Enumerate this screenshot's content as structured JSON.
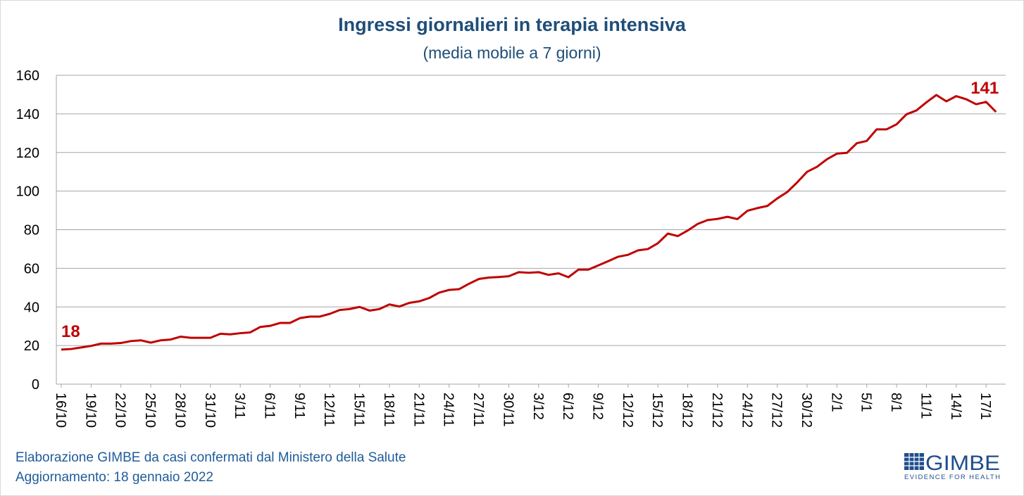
{
  "chart_data": {
    "type": "line",
    "title": "Ingressi giornalieri in terapia intensiva",
    "subtitle": "(media mobile a 7 giorni)",
    "xlabel": "",
    "ylabel": "",
    "ylim": [
      0,
      160
    ],
    "yticks": [
      0,
      20,
      40,
      60,
      80,
      100,
      120,
      140,
      160
    ],
    "grid": true,
    "x_tick_labels": [
      "16/10",
      "19/10",
      "22/10",
      "25/10",
      "28/10",
      "31/10",
      "3/11",
      "6/11",
      "9/11",
      "12/11",
      "15/11",
      "18/11",
      "21/11",
      "24/11",
      "27/11",
      "30/11",
      "3/12",
      "6/12",
      "9/12",
      "12/12",
      "15/12",
      "18/12",
      "21/12",
      "24/12",
      "27/12",
      "30/12",
      "2/1",
      "5/1",
      "8/1",
      "11/1",
      "14/1",
      "17/1"
    ],
    "x_start": "16/10",
    "x_end": "18/1",
    "series": [
      {
        "name": "Ingressi giornalieri in terapia intensiva",
        "color": "#c00000",
        "values": [
          17.9,
          18.2,
          19,
          19.8,
          21,
          21,
          21.3,
          22.3,
          22.7,
          21.5,
          22.7,
          23.1,
          24.6,
          24,
          24,
          24,
          26.1,
          25.8,
          26.4,
          26.8,
          29.6,
          30.2,
          31.7,
          31.7,
          34.2,
          35,
          35,
          36.4,
          38.4,
          38.9,
          40,
          38.1,
          38.9,
          41.3,
          40.2,
          42.1,
          42.9,
          44.6,
          47.4,
          48.8,
          49.2,
          52,
          54.5,
          55.2,
          55.5,
          55.9,
          58,
          57.7,
          58,
          56.6,
          57.4,
          55.4,
          59.3,
          59.3,
          61.5,
          63.7,
          66,
          67,
          69.3,
          70,
          73,
          78,
          76.7,
          79.6,
          83,
          85,
          85.6,
          86.7,
          85.5,
          89.8,
          91.2,
          92.3,
          96.2,
          99.5,
          104.5,
          110,
          112.6,
          116.5,
          119.4,
          119.8,
          124.8,
          126,
          132,
          132,
          134.6,
          139.8,
          141.8,
          146,
          149.8,
          146.5,
          149.2,
          147.6,
          145,
          146.2,
          141
        ]
      }
    ],
    "annotations": [
      {
        "text": "18",
        "at": "first"
      },
      {
        "text": "141",
        "at": "last"
      }
    ]
  },
  "footer": {
    "line1": "Elaborazione GIMBE da casi confermati dal Ministero della Salute",
    "line2": "Aggiornamento: 18 gennaio 2022"
  },
  "logo": {
    "name": "GIMBE",
    "tagline": "EVIDENCE FOR HEALTH"
  }
}
